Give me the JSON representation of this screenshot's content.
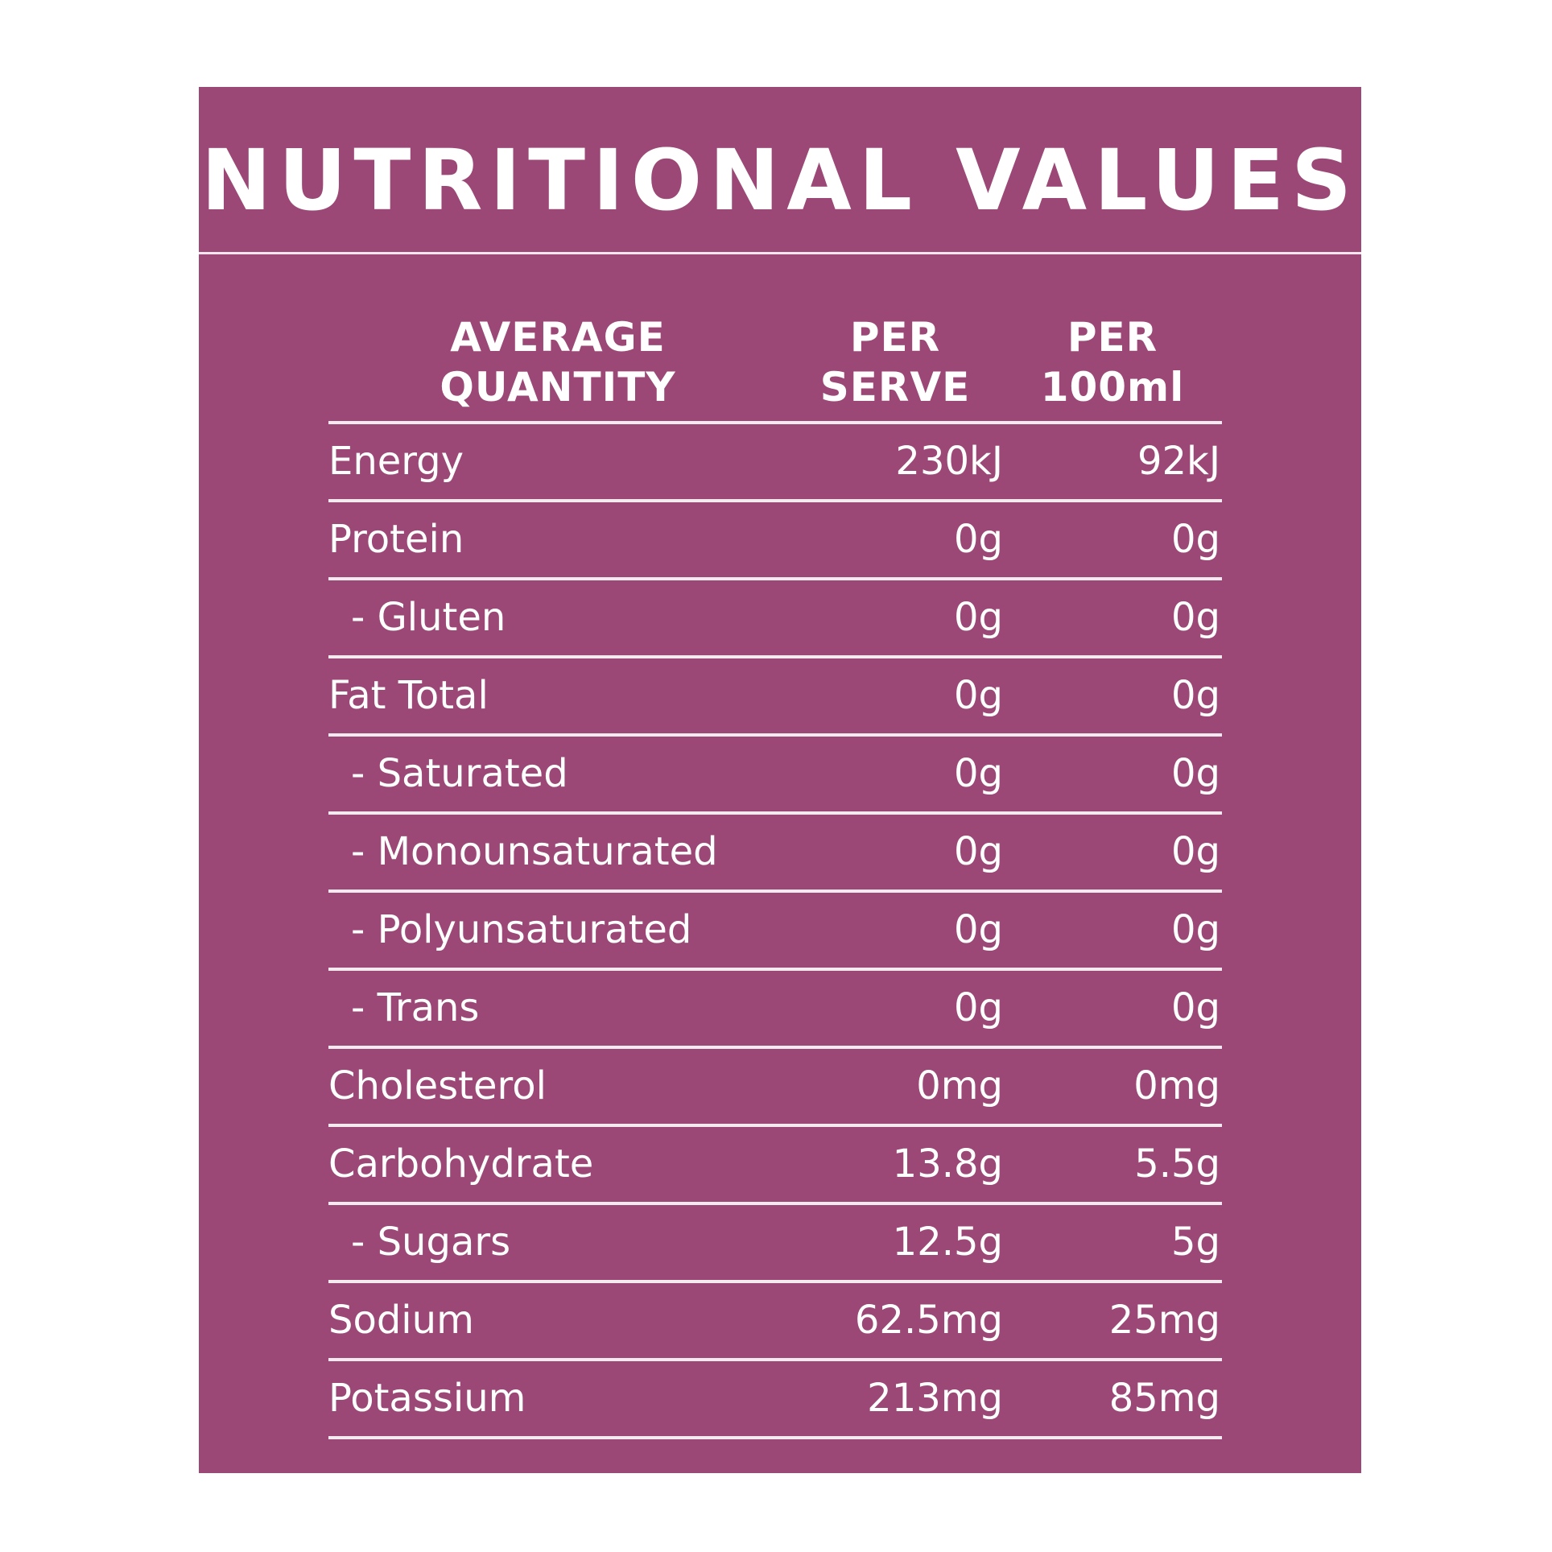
{
  "title": "NUTRITIONAL VALUES",
  "table": {
    "header": [
      [
        "AVERAGE",
        "QUANTITY"
      ],
      [
        "PER",
        "SERVE"
      ],
      [
        "PER",
        "100ml"
      ]
    ],
    "rows": [
      [
        "Energy",
        "230kJ",
        "92kJ"
      ],
      [
        "Protein",
        "0g",
        "0g"
      ],
      [
        "- Gluten",
        "0g",
        "0g"
      ],
      [
        "Fat Total",
        "0g",
        "0g"
      ],
      [
        "- Saturated",
        "0g",
        "0g"
      ],
      [
        "- Monounsaturated",
        "0g",
        "0g"
      ],
      [
        "- Polyunsaturated",
        "0g",
        "0g"
      ],
      [
        "- Trans",
        "0g",
        "0g"
      ],
      [
        "Cholesterol",
        "0mg",
        "0mg"
      ],
      [
        "Carbohydrate",
        "13.8g",
        "5.5g"
      ],
      [
        "- Sugars",
        "12.5g",
        "5g"
      ],
      [
        "Sodium",
        "62.5mg",
        "25mg"
      ],
      [
        "Potassium",
        "213mg",
        "85mg"
      ]
    ]
  }
}
